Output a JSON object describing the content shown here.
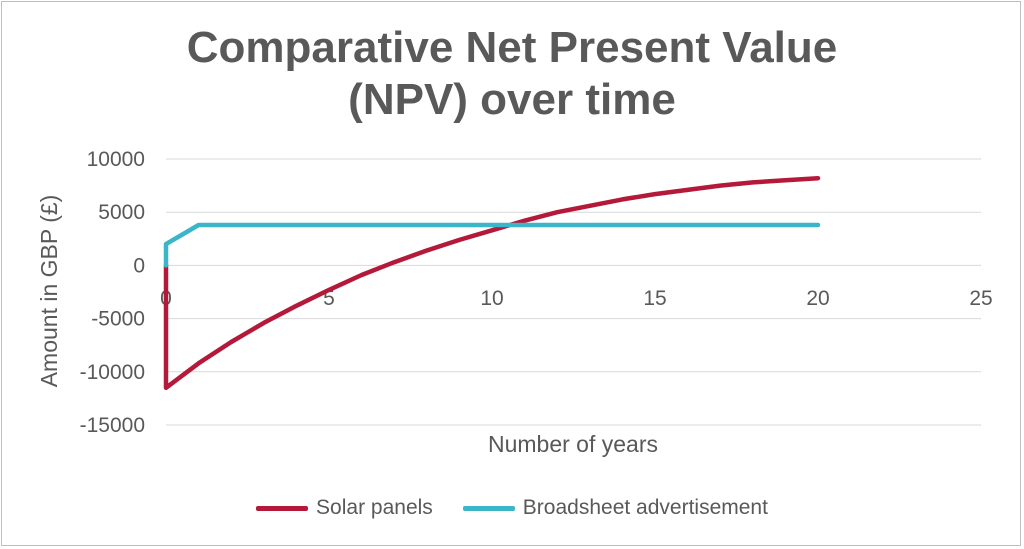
{
  "chart_data": {
    "type": "line",
    "title_line1": "Comparative Net Present Value",
    "title_line2": "(NPV) over time",
    "xlabel": "Number of years",
    "ylabel": "Amount in GBP (£)",
    "xlim": [
      0,
      25
    ],
    "ylim": [
      -15000,
      10000
    ],
    "x_ticks": [
      0,
      5,
      10,
      15,
      20,
      25
    ],
    "y_ticks": [
      10000,
      5000,
      0,
      -5000,
      -10000,
      -15000
    ],
    "grid": true,
    "legend": "bottom",
    "series": [
      {
        "name": "Solar panels",
        "color": "#b5193a",
        "x": [
          0,
          0,
          1,
          2,
          3,
          4,
          5,
          6,
          7,
          8,
          9,
          10,
          11,
          12,
          13,
          14,
          15,
          16,
          17,
          18,
          19,
          20
        ],
        "values": [
          0,
          -11500,
          -9200,
          -7200,
          -5400,
          -3800,
          -2300,
          -900,
          300,
          1400,
          2400,
          3300,
          4200,
          5000,
          5600,
          6200,
          6700,
          7100,
          7500,
          7800,
          8000,
          8200
        ]
      },
      {
        "name": "Broadsheet advertisement",
        "color": "#3bb5c8",
        "x": [
          0,
          0,
          1,
          20
        ],
        "values": [
          0,
          2000,
          3800,
          3800
        ]
      }
    ]
  }
}
